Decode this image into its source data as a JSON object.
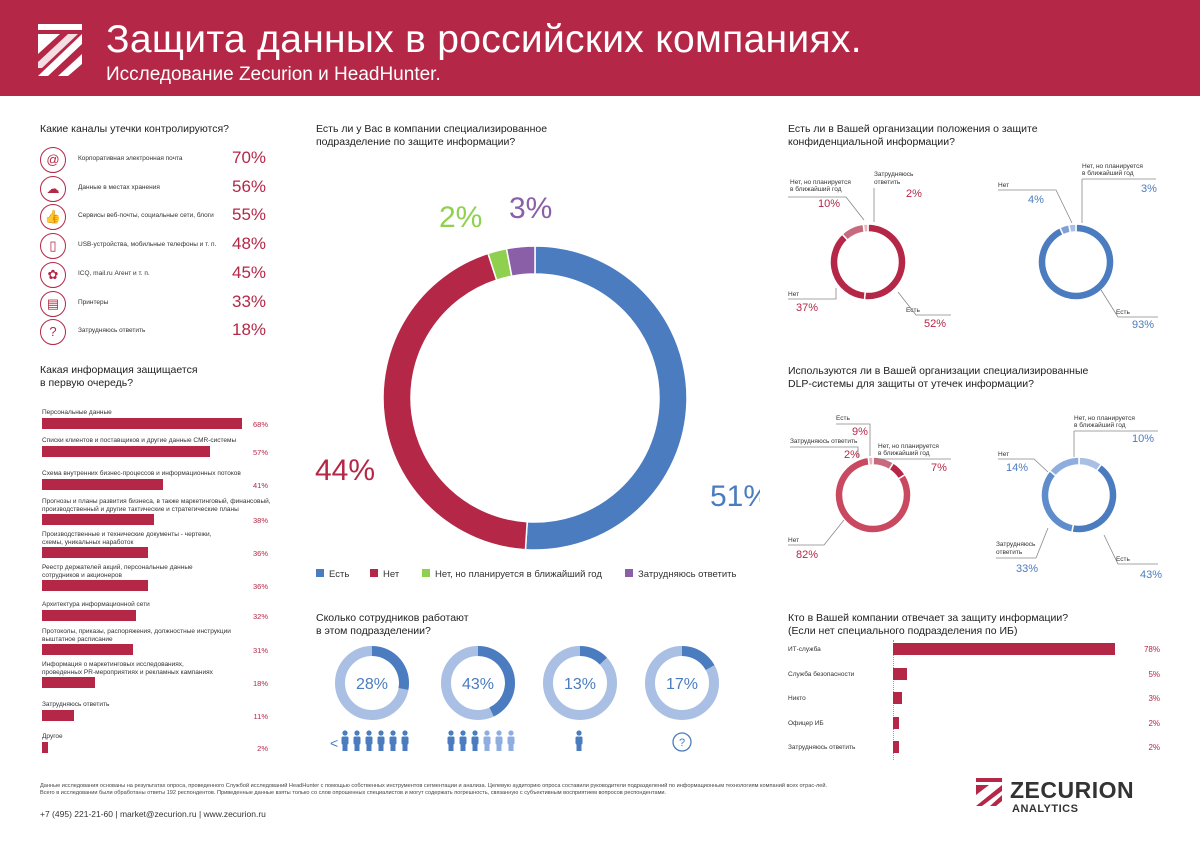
{
  "header": {
    "title": "Защита данных в российских компаниях.",
    "subtitle": "Исследование Zecurion и HeadHunter."
  },
  "channels": {
    "question": "Какие каналы утечки контролируются?",
    "items": [
      {
        "label": "Корпоративная электронная почта",
        "value": "70%",
        "icon": "at-icon"
      },
      {
        "label": "Данные в местах хранения",
        "value": "56%",
        "icon": "cloud-icon"
      },
      {
        "label": "Сервисы веб-почты, социальные сети, блоги",
        "value": "55%",
        "icon": "thumbs-up-icon"
      },
      {
        "label": "USB-устройства, мобильные телефоны и т. п.",
        "value": "48%",
        "icon": "phone-icon"
      },
      {
        "label": "ICQ, mail.ru Агент и т. п.",
        "value": "45%",
        "icon": "flower-icon"
      },
      {
        "label": "Принтеры",
        "value": "33%",
        "icon": "printer-icon"
      },
      {
        "label": "Затрудняюсь ответить",
        "value": "18%",
        "icon": "question-icon"
      }
    ]
  },
  "info": {
    "question_line1": "Какая информация защищается",
    "question_line2": "в первую очередь?",
    "items": [
      {
        "l1": "Персональные данные",
        "l2": "",
        "value": "68%"
      },
      {
        "l1": "Списки клиентов и поставщиков и другие данные CMR-системы",
        "l2": "",
        "value": "57%"
      },
      {
        "l1": "Схема внутренних бизнес-процессов и информационных потоков",
        "l2": "",
        "value": "41%"
      },
      {
        "l1": "Прогнозы и планы развития бизнеса, в также маркетинговый, финансовый,",
        "l2": "производственный и другие тактические и стратегические планы",
        "value": "38%"
      },
      {
        "l1": "Производственные и технические документы - чертежи,",
        "l2": "схемы, уникальных наработок",
        "value": "36%"
      },
      {
        "l1": "Реестр держателей акций, персональные данные",
        "l2": "сотрудников и акционеров",
        "value": "36%"
      },
      {
        "l1": "Архитектура информационной сети",
        "l2": "",
        "value": "32%"
      },
      {
        "l1": "Протоколы, приказы, распоряжения, должностные инструкции",
        "l2": "выштатное расписание",
        "value": "31%"
      },
      {
        "l1": "Информация о маркетинговых исследованиях,",
        "l2": "проведенных PR-мероприятиях и рекламных кампаниях",
        "value": "18%"
      },
      {
        "l1": "Затрудняюсь ответить",
        "l2": "",
        "value": "11%"
      },
      {
        "l1": "Другое",
        "l2": "",
        "value": "2%"
      }
    ]
  },
  "dept": {
    "question_line1": "Есть ли у Вас в компании специализированное",
    "question_line2": "подразделение по защите информации?",
    "legend": [
      "Есть",
      "Нет",
      "Нет, но планируется в ближайший год",
      "Затрудняюсь ответить"
    ]
  },
  "policy": {
    "question_line1": "Есть ли в Вашей организации положения о защите",
    "question_line2": "конфиденциальной информации?",
    "left": {
      "lbl_no": "Нет",
      "val_no": "37%",
      "lbl_plan_l1": "Нет, но планируется",
      "lbl_plan_l2": "в ближайший год",
      "val_plan": "10%",
      "lbl_hard_l1": "Затрудняюсь",
      "lbl_hard_l2": "ответить",
      "val_hard": "2%",
      "lbl_yes": "Есть",
      "val_yes": "52%"
    },
    "right": {
      "lbl_no": "Нет",
      "val_no": "4%",
      "lbl_plan_l1": "Нет, но планируется",
      "lbl_plan_l2": "в ближайший год",
      "val_plan": "3%",
      "lbl_yes": "Есть",
      "val_yes": "93%"
    }
  },
  "dlp": {
    "question_line1": "Используются ли в Вашей организации специализированные",
    "question_line2": "DLP-системы для защиты от утечек информации?",
    "left": {
      "lbl_yes": "Есть",
      "val_yes": "9%",
      "lbl_hard": "Затрудняюсь ответить",
      "val_hard": "2%",
      "lbl_plan_l1": "Нет, но планируется",
      "lbl_plan_l2": "в ближайший год",
      "val_plan": "7%",
      "lbl_no": "Нет",
      "val_no": "82%"
    },
    "right": {
      "lbl_plan_l1": "Нет, но планируется",
      "lbl_plan_l2": "в ближайший год",
      "val_plan": "10%",
      "lbl_no": "Нет",
      "val_no": "14%",
      "lbl_hard_l1": "Затрудняюсь",
      "lbl_hard_l2": "ответить",
      "val_hard": "33%",
      "lbl_yes": "Есть",
      "val_yes": "43%"
    }
  },
  "staff": {
    "question_line1": "Сколько сотрудников работают",
    "question_line2": "в этом подразделении?",
    "items": [
      {
        "value": "28%",
        "caption": "<"
      },
      {
        "value": "43%",
        "caption": ""
      },
      {
        "value": "13%",
        "caption": ""
      },
      {
        "value": "17%",
        "caption": "?"
      }
    ]
  },
  "who": {
    "question_line1": "Кто в Вашей компании отвечает за защиту информации?",
    "question_line2": "(Если нет специального подразделения по ИБ)",
    "items": [
      {
        "label": "ИТ-служба",
        "value": "78%"
      },
      {
        "label": "Служба безопасности",
        "value": "5%"
      },
      {
        "label": "Никто",
        "value": "3%"
      },
      {
        "label": "Офицер ИБ",
        "value": "2%"
      },
      {
        "label": "Затрудняюсь ответить",
        "value": "2%"
      }
    ]
  },
  "footer": {
    "text_line1": "Данные исследования основаны на результатах опроса, проведенного Службой исследований HeadHunter с помощью собственных инструментов сегментации и анализа. Целевую аудиторию опроса составили руководители подразделений по информационным технологиям компаний всех отрас-лей.",
    "text_line2": "Всего в исследовании были обработаны ответы 192 респондентов. Приведенные данные взяты только со слов опрошенных специалистов и могут содержать погрешность, связанную с субъективным восприятием вопросов респондентами.",
    "contacts": "+7 (495) 221-21-60  |  market@zecurion.ru  |  www.zecurion.ru",
    "brand": "ZECURION",
    "brand_sub": "ANALYTICS"
  },
  "colors": {
    "red": "#b52746",
    "blue": "#4a7cbf",
    "light_blue": "#a9bfe3",
    "green": "#8fd14f",
    "purple": "#8a5fa8",
    "light_red": "#c76a7d"
  },
  "chart_data": [
    {
      "type": "bar",
      "title": "Какие каналы утечки контролируются?",
      "categories": [
        "Корпоративная электронная почта",
        "Данные в местах хранения",
        "Сервисы веб-почты, социальные сети, блоги",
        "USB-устройства, мобильные телефоны и т. п.",
        "ICQ, mail.ru Агент и т. п.",
        "Принтеры",
        "Затрудняюсь ответить"
      ],
      "values": [
        70,
        56,
        55,
        48,
        45,
        33,
        18
      ]
    },
    {
      "type": "bar",
      "title": "Какая информация защищается в первую очередь?",
      "values": [
        68,
        57,
        41,
        38,
        36,
        36,
        32,
        31,
        18,
        11,
        2
      ],
      "ylim": [
        0,
        68
      ]
    },
    {
      "type": "pie",
      "title": "Есть ли у Вас в компании специализированное подразделение по защите информации?",
      "categories": [
        "Есть",
        "Нет",
        "Нет, но планируется в ближайший год",
        "Затрудняюсь ответить"
      ],
      "values": [
        51,
        44,
        2,
        3
      ]
    },
    {
      "type": "pie",
      "title": "Положения о защите (левая)",
      "categories": [
        "Есть",
        "Нет",
        "Нет, но планируется в ближайший год",
        "Затрудняюсь ответить"
      ],
      "values": [
        52,
        37,
        10,
        2
      ]
    },
    {
      "type": "pie",
      "title": "Положения о защите (правая)",
      "categories": [
        "Есть",
        "Нет",
        "Нет, но планируется в ближайший год"
      ],
      "values": [
        93,
        4,
        3
      ]
    },
    {
      "type": "pie",
      "title": "DLP-системы (левая)",
      "categories": [
        "Нет",
        "Есть",
        "Нет, но планируется в ближайший год",
        "Затрудняюсь ответить"
      ],
      "values": [
        82,
        9,
        7,
        2
      ]
    },
    {
      "type": "pie",
      "title": "DLP-системы (правая)",
      "categories": [
        "Есть",
        "Затрудняюсь ответить",
        "Нет",
        "Нет, но планируется в ближайший год"
      ],
      "values": [
        43,
        33,
        14,
        10
      ]
    },
    {
      "type": "pie",
      "title": "Сколько сотрудников работают в этом подразделении?",
      "values": [
        28,
        43,
        13,
        17
      ]
    },
    {
      "type": "bar",
      "title": "Кто в Вашей компании отвечает за защиту информации?",
      "categories": [
        "ИТ-служба",
        "Служба безопасности",
        "Никто",
        "Офицер ИБ",
        "Затрудняюсь ответить"
      ],
      "values": [
        78,
        5,
        3,
        2,
        2
      ],
      "ylim": [
        0,
        78
      ]
    }
  ]
}
